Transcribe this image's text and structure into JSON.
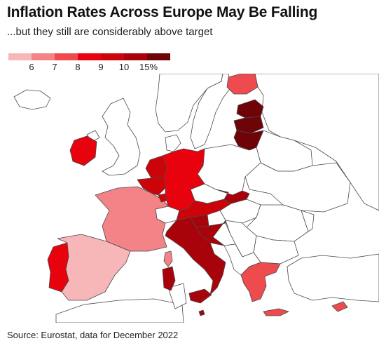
{
  "title": "Inflation Rates Across Europe May Be Falling",
  "subtitle": "...but they still are considerably above target",
  "legend": {
    "colors": [
      "#f7b6b8",
      "#f38387",
      "#ee4b4f",
      "#e8020d",
      "#cc0409",
      "#a8030a",
      "#6e0308"
    ],
    "labels": [
      "6",
      "7",
      "8",
      "9",
      "10",
      "15%"
    ]
  },
  "map": {
    "outline_color": "#4a4a4a",
    "no_data_fill": "#ffffff",
    "regions": [
      {
        "name": "Portugal",
        "color": "#e8020d"
      },
      {
        "name": "Spain",
        "color": "#f7b6b8"
      },
      {
        "name": "France",
        "color": "#f38387"
      },
      {
        "name": "Ireland",
        "color": "#e8020d"
      },
      {
        "name": "Belgium",
        "color": "#cc0409"
      },
      {
        "name": "Netherlands",
        "color": "#cc0409"
      },
      {
        "name": "Luxembourg",
        "color": "#cc0409"
      },
      {
        "name": "Germany",
        "color": "#e8020d"
      },
      {
        "name": "Austria",
        "color": "#cc0409"
      },
      {
        "name": "Slovakia",
        "color": "#a8030a"
      },
      {
        "name": "Slovenia",
        "color": "#a8030a"
      },
      {
        "name": "Croatia",
        "color": "#a8030a"
      },
      {
        "name": "Italy",
        "color": "#a8030a"
      },
      {
        "name": "Sicily",
        "color": "#a8030a"
      },
      {
        "name": "Sardinia",
        "color": "#a8030a"
      },
      {
        "name": "Corsica",
        "color": "#f38387"
      },
      {
        "name": "Greece",
        "color": "#ee4b4f"
      },
      {
        "name": "Crete",
        "color": "#ee4b4f"
      },
      {
        "name": "Cyprus",
        "color": "#ee4b4f"
      },
      {
        "name": "Malta",
        "color": "#a8030a"
      },
      {
        "name": "Finland",
        "color": "#ee4b4f"
      },
      {
        "name": "Estonia",
        "color": "#6e0308"
      },
      {
        "name": "Latvia",
        "color": "#6e0308"
      },
      {
        "name": "Lithuania",
        "color": "#6e0308"
      }
    ]
  },
  "source": "Source: Eurostat, data for December 2022"
}
